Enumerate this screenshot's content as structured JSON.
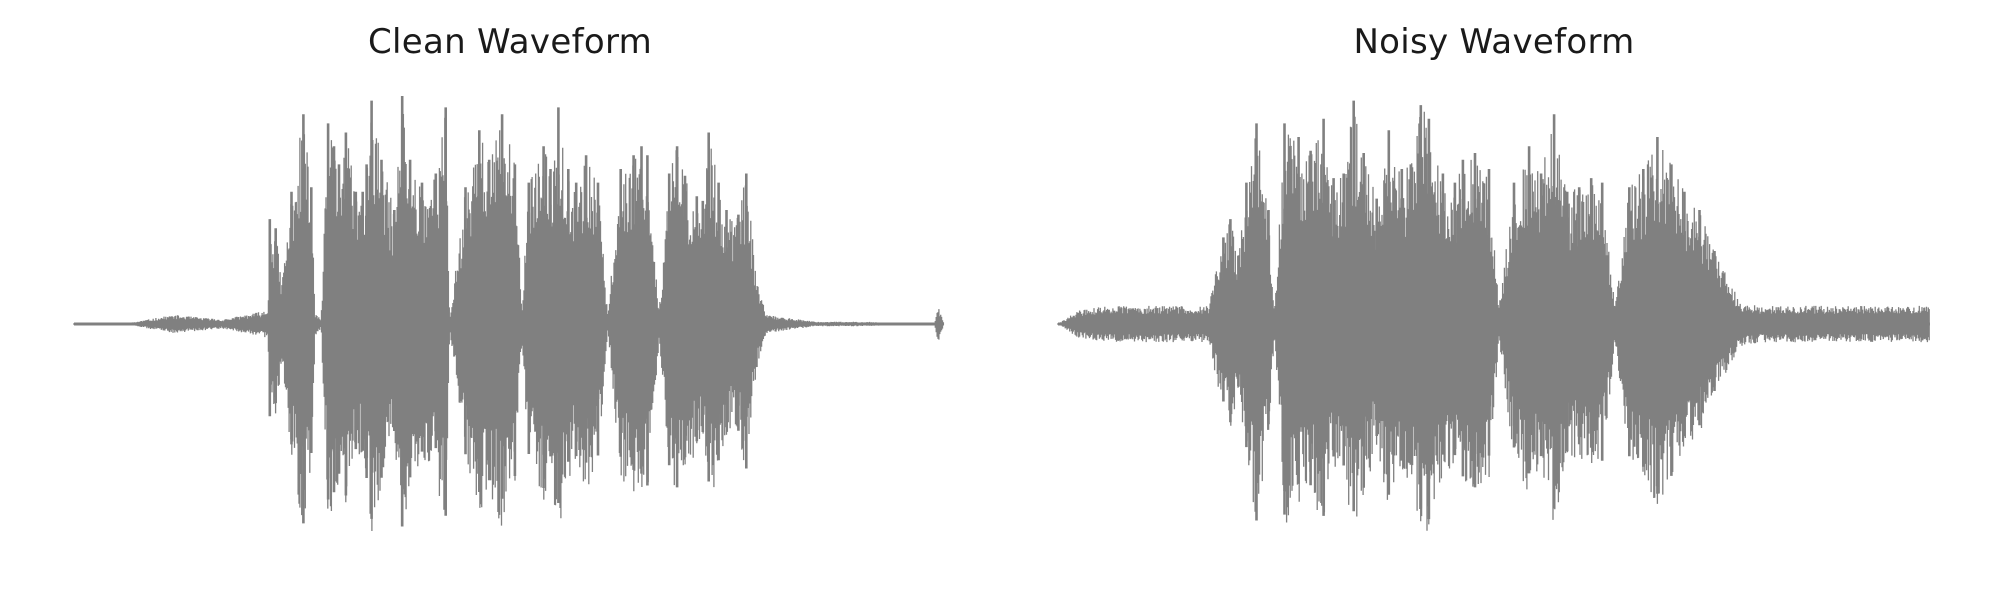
{
  "chart_data": [
    {
      "type": "line",
      "title": "Clean Waveform",
      "xlabel": "",
      "ylabel": "",
      "axes_visible": false,
      "grid": false,
      "line_color": "#808080",
      "ylim": [
        -1.0,
        1.0
      ],
      "x": [
        0,
        50,
        100,
        150,
        196,
        198,
        204,
        210,
        220,
        232,
        240,
        244,
        250,
        257,
        263,
        268,
        275,
        285,
        292,
        296,
        301,
        311,
        324,
        332,
        340,
        352,
        366,
        376,
        380,
        396,
        410,
        420,
        433,
        446,
        453,
        460,
        475,
        482,
        490,
        500,
        508,
        518,
        530,
        540,
        553,
        566,
        574,
        580,
        592,
        602,
        610,
        618,
        630,
        636,
        642,
        652,
        660,
        672,
        680,
        690,
        700,
        750,
        800,
        850,
        870,
        874,
        880
      ],
      "values": [
        0.0,
        0.0,
        0.04,
        0.02,
        0.06,
        0.46,
        0.42,
        0.18,
        0.58,
        0.92,
        0.6,
        0.05,
        0.02,
        0.88,
        0.78,
        0.7,
        0.84,
        0.58,
        0.58,
        0.7,
        0.98,
        0.72,
        0.5,
        1.0,
        0.72,
        0.62,
        0.66,
        0.95,
        0.02,
        0.6,
        0.85,
        0.72,
        0.92,
        0.7,
        0.08,
        0.62,
        0.78,
        0.68,
        0.95,
        0.68,
        0.62,
        0.74,
        0.62,
        0.04,
        0.68,
        0.74,
        0.78,
        0.74,
        0.06,
        0.66,
        0.78,
        0.65,
        0.56,
        0.54,
        0.84,
        0.62,
        0.5,
        0.48,
        0.66,
        0.22,
        0.04,
        0.01,
        0.01,
        0.0,
        0.0,
        0.08,
        0.0
      ]
    },
    {
      "type": "line",
      "title": "Noisy Waveform",
      "xlabel": "",
      "ylabel": "",
      "axes_visible": false,
      "grid": false,
      "line_color": "#808080",
      "ylim": [
        -1.0,
        1.0
      ],
      "x": [
        0,
        20,
        50,
        100,
        150,
        165,
        172,
        180,
        188,
        198,
        210,
        216,
        226,
        240,
        252,
        265,
        275,
        285,
        295,
        305,
        318,
        330,
        343,
        352,
        362,
        370,
        384,
        396,
        404,
        416,
        430,
        440,
        455,
        470,
        482,
        495,
        508,
        520,
        532,
        543,
        556,
        570,
        584,
        598,
        612,
        625,
        640,
        655,
        680,
        700,
        750,
        800,
        850,
        870
      ],
      "values": [
        0.0,
        0.06,
        0.08,
        0.08,
        0.08,
        0.38,
        0.46,
        0.3,
        0.62,
        0.88,
        0.5,
        0.05,
        0.88,
        0.82,
        0.76,
        0.9,
        0.64,
        0.66,
        0.98,
        0.75,
        0.55,
        0.85,
        0.68,
        0.7,
        0.96,
        0.9,
        0.66,
        0.62,
        0.72,
        0.75,
        0.68,
        0.08,
        0.62,
        0.78,
        0.66,
        0.92,
        0.58,
        0.6,
        0.64,
        0.62,
        0.08,
        0.6,
        0.68,
        0.82,
        0.7,
        0.58,
        0.5,
        0.32,
        0.1,
        0.08,
        0.08,
        0.08,
        0.08,
        0.08
      ]
    }
  ]
}
